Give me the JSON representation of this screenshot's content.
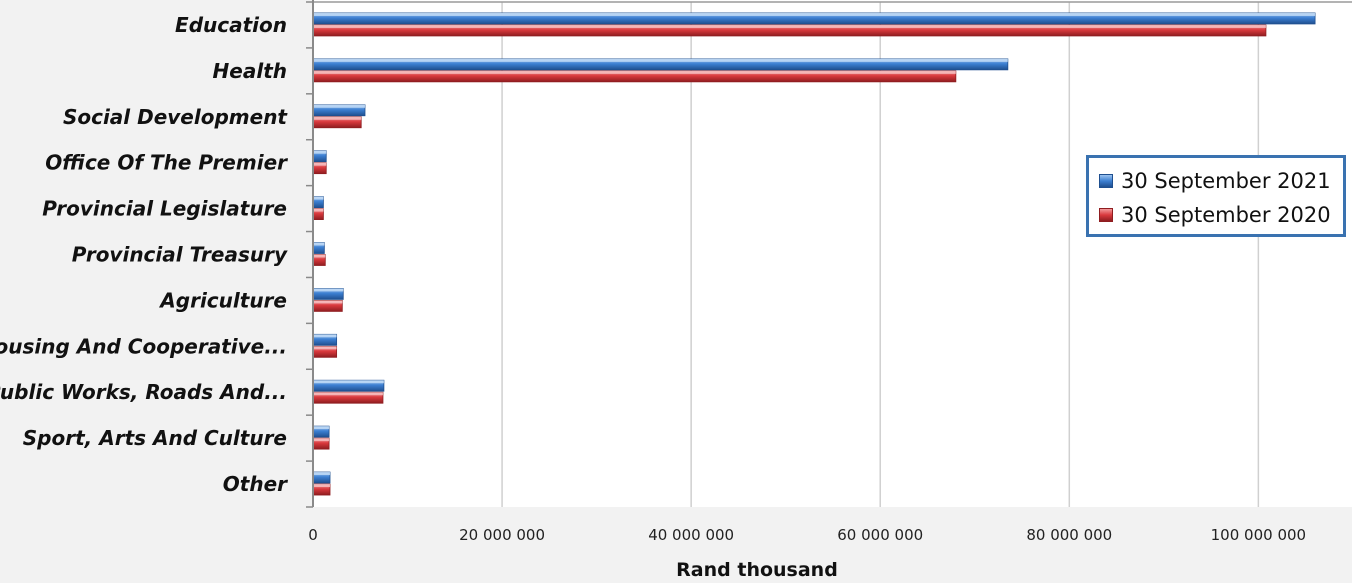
{
  "chart_data": {
    "type": "bar",
    "orientation": "horizontal",
    "title": "",
    "xlabel": "Rand thousand",
    "ylabel": "",
    "xlim": [
      0,
      108000000
    ],
    "x_ticks": [
      0,
      20000000,
      40000000,
      60000000,
      80000000,
      100000000
    ],
    "x_tick_labels": [
      "0",
      "20 000 000",
      "40 000 000",
      "60 000 000",
      "80 000 000",
      "100 000 000"
    ],
    "grid": "vertical",
    "legend_position": "right",
    "categories": [
      "Education",
      "Health",
      "Social Development",
      "Office Of The Premier",
      "Provincial Legislature",
      "Provincial Treasury",
      "Agriculture",
      "Housing And Cooperative...",
      "Public Works, Roads And...",
      "Sport, Arts And Culture",
      "Other"
    ],
    "series": [
      {
        "name": "30 September 2021",
        "color": "#3c7fd1",
        "values": [
          106000000,
          73500000,
          5500000,
          1400000,
          1100000,
          1200000,
          3200000,
          2500000,
          7500000,
          1700000,
          1800000
        ]
      },
      {
        "name": "30 September 2020",
        "color": "#d9393d",
        "values": [
          100800000,
          68000000,
          5100000,
          1400000,
          1100000,
          1300000,
          3100000,
          2500000,
          7400000,
          1700000,
          1800000
        ]
      }
    ]
  }
}
